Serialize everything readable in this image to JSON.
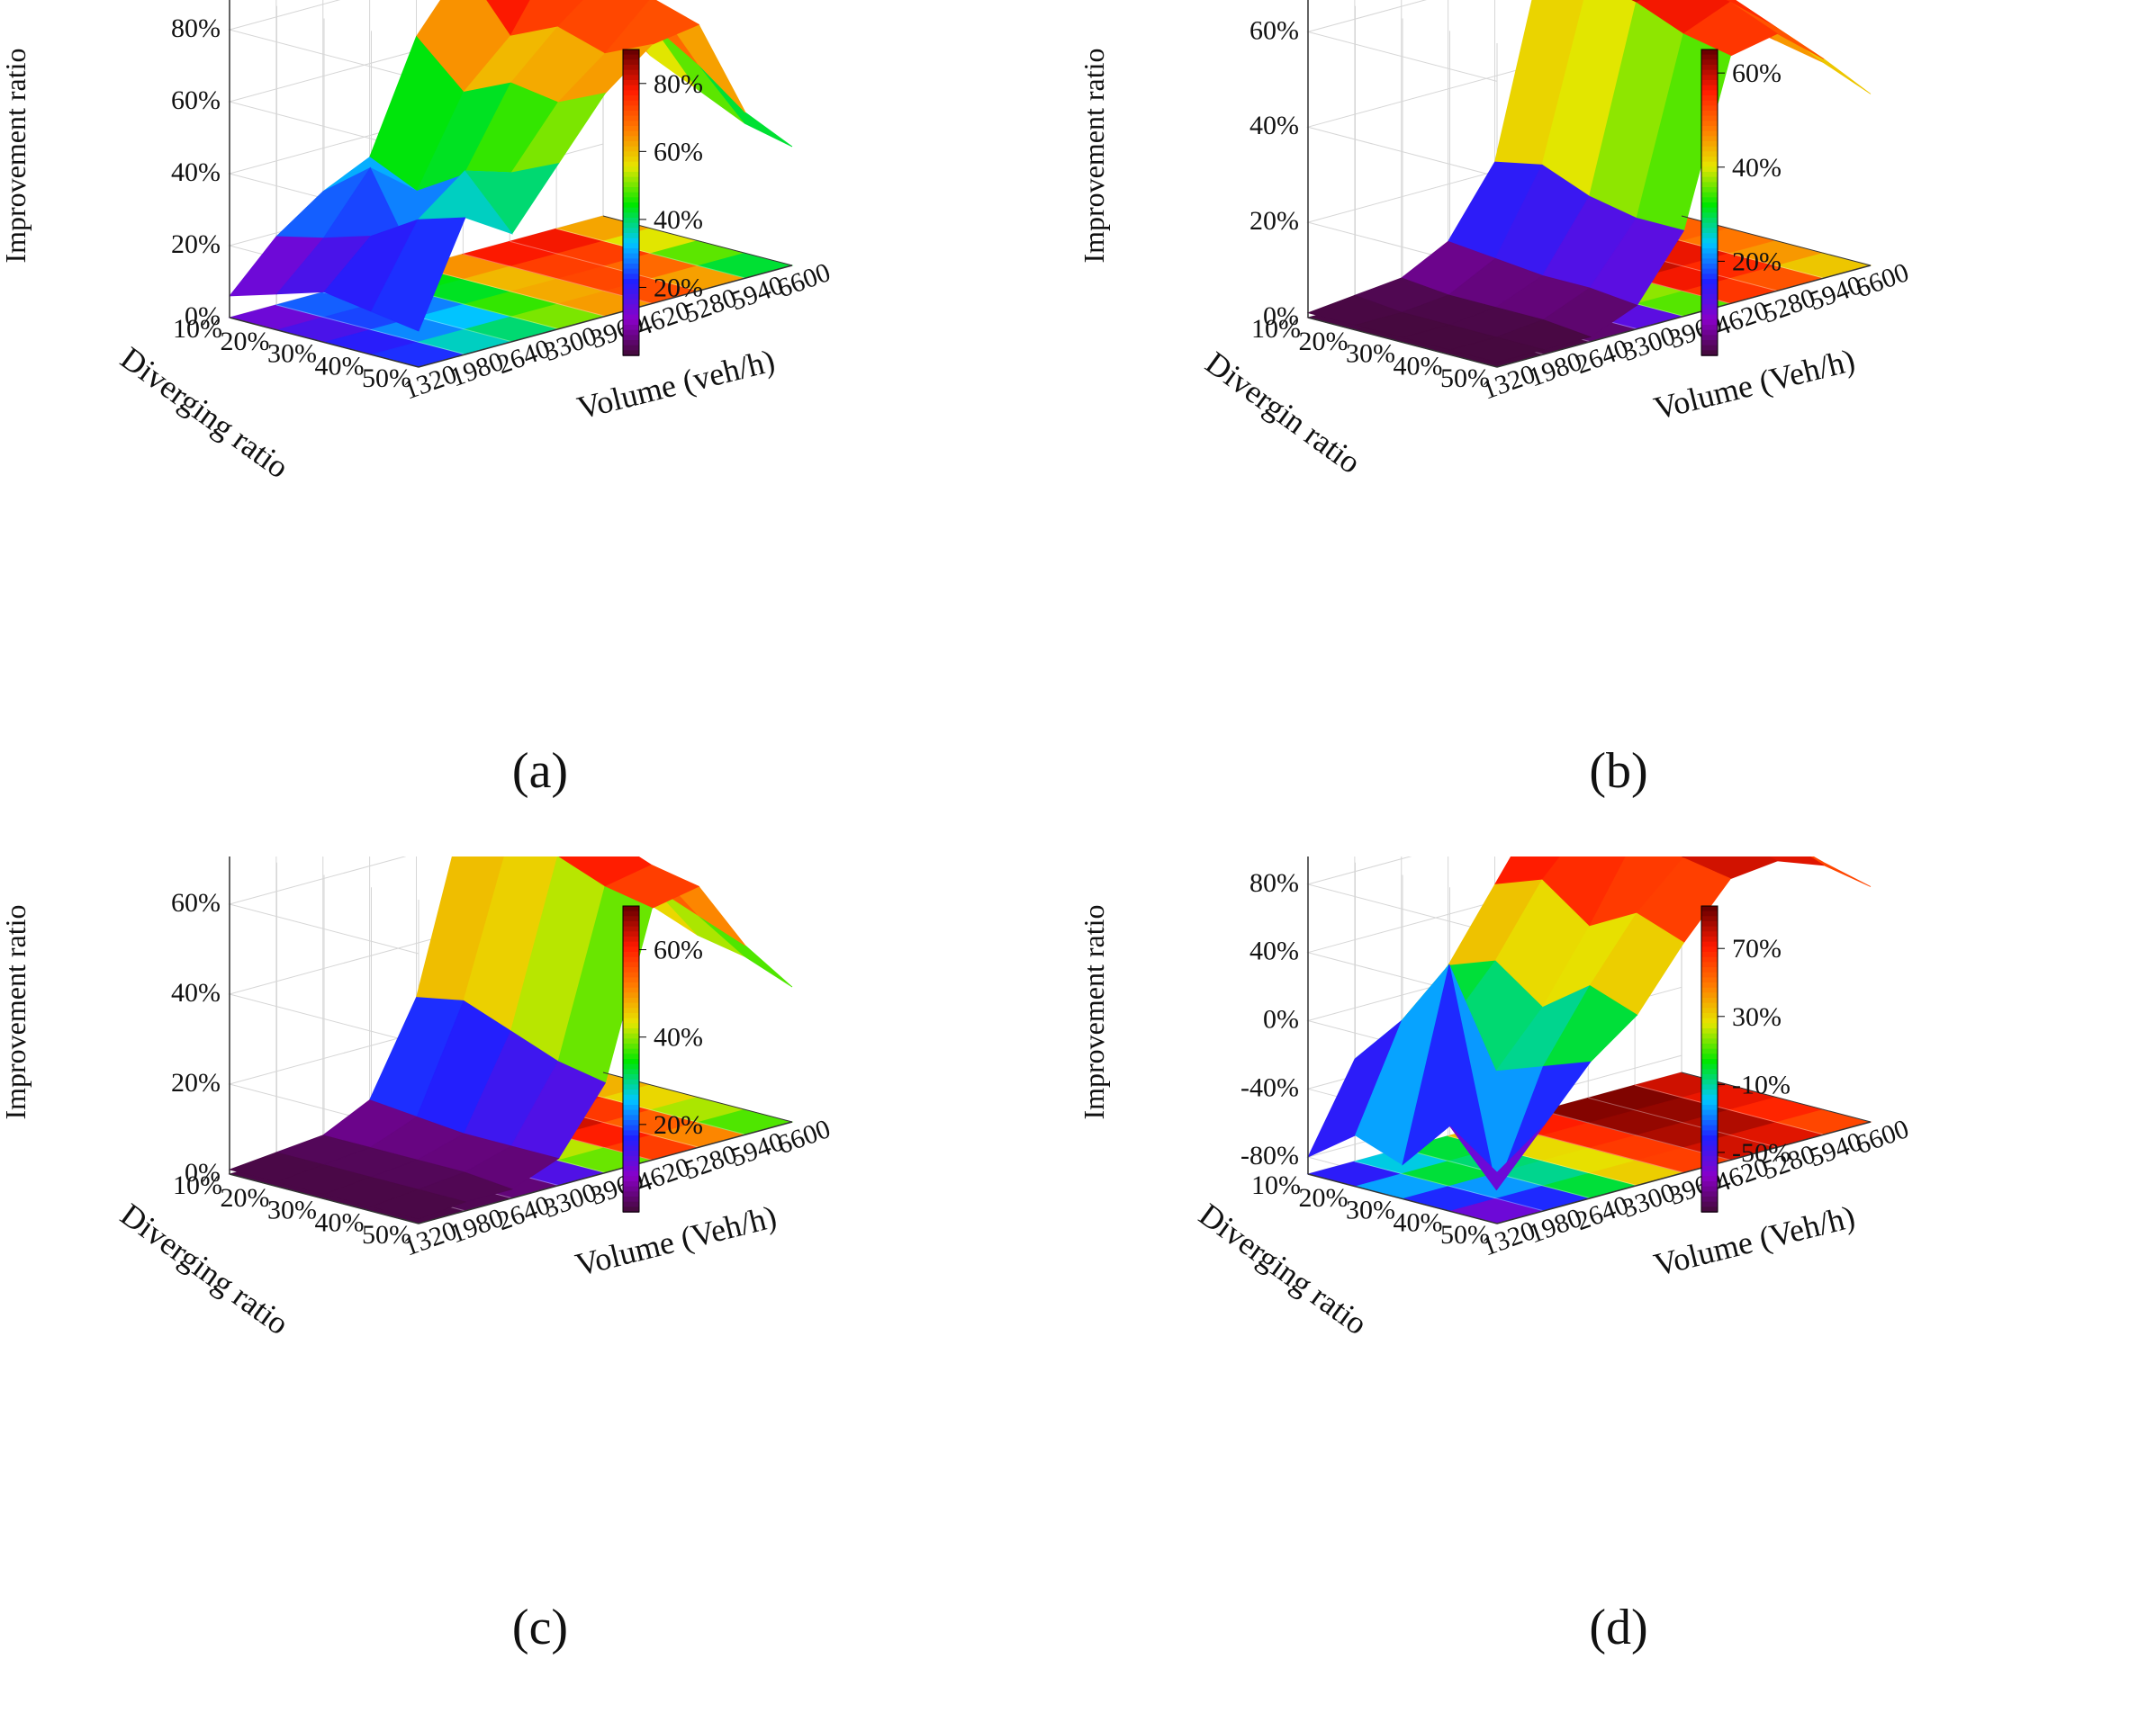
{
  "figure": {
    "colors": {
      "background": "#ffffff",
      "grid": "#d6d6d6",
      "axis": "#333333",
      "colormap": [
        "#3d0a2c",
        "#8a00c8",
        "#2020ff",
        "#00c8ff",
        "#00e600",
        "#e6e600",
        "#ff7a00",
        "#ff1a00",
        "#6b0000"
      ]
    }
  },
  "chart_data": [
    {
      "panel": "a",
      "caption": "(a)",
      "type": "surface3d",
      "zlabel": "Improvement ratio",
      "xlabel": "Volume (veh/h)",
      "ylabel": "Diverging ratio",
      "x_ticks": [
        "1320",
        "1980",
        "2640",
        "3300",
        "3960",
        "4620",
        "5280",
        "5940",
        "6600"
      ],
      "y_ticks": [
        "10%",
        "20%",
        "30%",
        "40%",
        "50%"
      ],
      "z_ticks": [
        "0%",
        "20%",
        "40%",
        "60%",
        "80%"
      ],
      "zlim": [
        0,
        90
      ],
      "colorbar": {
        "range": [
          0,
          90
        ],
        "ticks": [
          "20%",
          "40%",
          "60%",
          "80%"
        ],
        "tick_values": [
          20,
          40,
          60,
          80
        ]
      },
      "x": [
        1320,
        1980,
        2640,
        3300,
        3960,
        4620,
        5280,
        5940,
        6600
      ],
      "series": [
        {
          "name": "Diverging ratio 10%",
          "values": [
            6,
            19,
            28,
            34,
            64,
            80,
            88,
            76,
            58
          ]
        },
        {
          "name": "Diverging ratio 20%",
          "values": [
            10,
            22,
            38,
            28,
            52,
            64,
            84,
            70,
            48
          ]
        },
        {
          "name": "Diverging ratio 30%",
          "values": [
            14,
            26,
            14,
            36,
            58,
            70,
            80,
            64,
            42
          ]
        },
        {
          "name": "Diverging ratio 40%",
          "values": [
            12,
            34,
            44,
            40,
            56,
            66,
            78,
            56,
            36
          ]
        },
        {
          "name": "Diverging ratio 50%",
          "values": [
            10,
            38,
            30,
            46,
            62,
            72,
            74,
            46,
            33
          ]
        }
      ]
    },
    {
      "panel": "b",
      "caption": "(b)",
      "type": "surface3d",
      "zlabel": "Improvement ratio",
      "xlabel": "Volume (Veh/h)",
      "ylabel": "Divergin ratio",
      "x_ticks": [
        "1320",
        "1980",
        "2640",
        "3300",
        "3960",
        "4620",
        "5280",
        "5940",
        "6600"
      ],
      "y_ticks": [
        "10%",
        "20%",
        "30%",
        "40%",
        "50%"
      ],
      "z_ticks": [
        "0%",
        "20%",
        "40%",
        "60%"
      ],
      "zlim": [
        0,
        68
      ],
      "colorbar": {
        "range": [
          0,
          65
        ],
        "ticks": [
          "20%",
          "40%",
          "60%"
        ],
        "tick_values": [
          20,
          40,
          60
        ]
      },
      "x": [
        1320,
        1980,
        2640,
        3300,
        3960,
        4620,
        5280,
        5940,
        6600
      ],
      "series": [
        {
          "name": "Diverging ratio 10%",
          "values": [
            1,
            2,
            3,
            8,
            22,
            62,
            64,
            58,
            45
          ]
        },
        {
          "name": "Diverging ratio 20%",
          "values": [
            1,
            1,
            2,
            7,
            24,
            60,
            62,
            56,
            44
          ]
        },
        {
          "name": "Diverging ratio 30%",
          "values": [
            1,
            1,
            2,
            6,
            20,
            58,
            60,
            54,
            42
          ]
        },
        {
          "name": "Diverging ratio 40%",
          "values": [
            1,
            1,
            2,
            6,
            18,
            54,
            58,
            50,
            40
          ]
        },
        {
          "name": "Diverging ratio 50%",
          "values": [
            1,
            1,
            1,
            5,
            18,
            52,
            54,
            46,
            36
          ]
        }
      ]
    },
    {
      "panel": "c",
      "caption": "(c)",
      "type": "surface3d",
      "zlabel": "Improvement ratio",
      "xlabel": "Volume (Veh/h)",
      "ylabel": "Diverging ratio",
      "x_ticks": [
        "1320",
        "1980",
        "2640",
        "3300",
        "3960",
        "4620",
        "5280",
        "5940",
        "6600"
      ],
      "y_ticks": [
        "10%",
        "20%",
        "30%",
        "40%",
        "50%"
      ],
      "z_ticks": [
        "0%",
        "20%",
        "40%",
        "60%"
      ],
      "zlim": [
        0,
        72
      ],
      "colorbar": {
        "range": [
          0,
          70
        ],
        "ticks": [
          "20%",
          "40%",
          "60%"
        ],
        "tick_values": [
          20,
          40,
          60
        ]
      },
      "x": [
        1320,
        1980,
        2640,
        3300,
        3960,
        4620,
        5280,
        5940,
        6600
      ],
      "series": [
        {
          "name": "Diverging ratio 10%",
          "values": [
            1,
            2,
            3,
            8,
            28,
            66,
            68,
            56,
            42
          ]
        },
        {
          "name": "Diverging ratio 20%",
          "values": [
            1,
            2,
            3,
            7,
            30,
            64,
            66,
            54,
            40
          ]
        },
        {
          "name": "Diverging ratio 30%",
          "values": [
            1,
            2,
            3,
            6,
            26,
            62,
            64,
            50,
            36
          ]
        },
        {
          "name": "Diverging ratio 40%",
          "values": [
            1,
            2,
            3,
            6,
            22,
            58,
            60,
            46,
            34
          ]
        },
        {
          "name": "Diverging ratio 50%",
          "values": [
            1,
            2,
            2,
            6,
            20,
            56,
            58,
            42,
            30
          ]
        }
      ]
    },
    {
      "panel": "d",
      "caption": "(d)",
      "type": "surface3d",
      "zlabel": "Improvement ratio",
      "xlabel": "Volume (Veh/h)",
      "ylabel": "Diverging ratio",
      "x_ticks": [
        "1320",
        "1980",
        "2640",
        "3300",
        "3960",
        "4620",
        "5280",
        "5940",
        "6600"
      ],
      "y_ticks": [
        "10%",
        "20%",
        "30%",
        "40%",
        "50%"
      ],
      "z_ticks": [
        "-80%",
        "-40%",
        "0%",
        "40%",
        "80%"
      ],
      "zlim": [
        -90,
        100
      ],
      "colorbar": {
        "range": [
          -85,
          95
        ],
        "ticks": [
          "-50%",
          "-10%",
          "30%",
          "70%"
        ],
        "tick_values": [
          -50,
          -10,
          30,
          70
        ]
      },
      "x": [
        1320,
        1980,
        2640,
        3300,
        3960,
        4620,
        5280,
        5940,
        6600
      ],
      "series": [
        {
          "name": "Diverging ratio 10%",
          "values": [
            -80,
            -30,
            -20,
            10,
            50,
            90,
            95,
            92,
            72
          ]
        },
        {
          "name": "Diverging ratio 20%",
          "values": [
            -60,
            0,
            -10,
            20,
            60,
            88,
            92,
            88,
            68
          ]
        },
        {
          "name": "Diverging ratio 30%",
          "values": [
            -70,
            40,
            -30,
            0,
            40,
            85,
            90,
            85,
            62
          ]
        },
        {
          "name": "Diverging ratio 40%",
          "values": [
            -40,
            -85,
            -20,
            20,
            55,
            80,
            85,
            78,
            55
          ]
        },
        {
          "name": "Diverging ratio 50%",
          "values": [
            -60,
            -40,
            -10,
            10,
            45,
            75,
            78,
            68,
            48
          ]
        }
      ]
    }
  ]
}
